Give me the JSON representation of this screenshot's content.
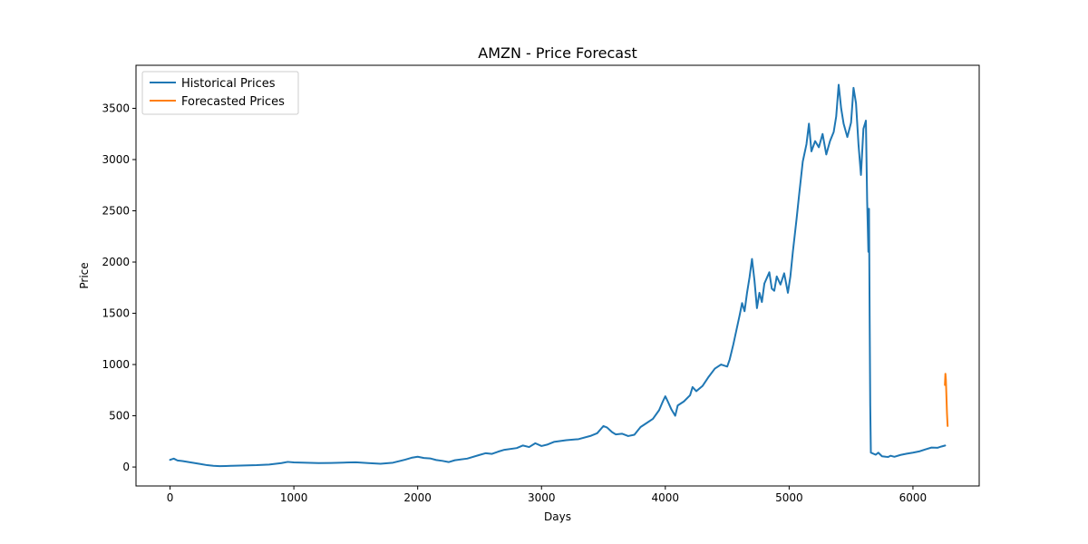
{
  "chart_data": {
    "type": "line",
    "title": "AMZN - Price Forecast",
    "xlabel": "Days",
    "ylabel": "Price",
    "xlim": [
      -275,
      6535
    ],
    "ylim": [
      -185,
      3920
    ],
    "x_ticks": [
      0,
      1000,
      2000,
      3000,
      4000,
      5000,
      6000
    ],
    "y_ticks": [
      0,
      500,
      1000,
      1500,
      2000,
      2500,
      3000,
      3500
    ],
    "grid": false,
    "legend_position": "upper left",
    "series": [
      {
        "name": "Historical Prices",
        "color": "#1f77b4",
        "points": [
          [
            0,
            70
          ],
          [
            30,
            82
          ],
          [
            60,
            64
          ],
          [
            100,
            58
          ],
          [
            150,
            48
          ],
          [
            200,
            38
          ],
          [
            250,
            28
          ],
          [
            300,
            18
          ],
          [
            350,
            12
          ],
          [
            400,
            8
          ],
          [
            450,
            10
          ],
          [
            500,
            12
          ],
          [
            600,
            15
          ],
          [
            700,
            18
          ],
          [
            800,
            24
          ],
          [
            900,
            38
          ],
          [
            950,
            50
          ],
          [
            1000,
            45
          ],
          [
            1100,
            42
          ],
          [
            1200,
            38
          ],
          [
            1300,
            40
          ],
          [
            1400,
            43
          ],
          [
            1500,
            46
          ],
          [
            1600,
            38
          ],
          [
            1700,
            32
          ],
          [
            1800,
            42
          ],
          [
            1900,
            72
          ],
          [
            1950,
            90
          ],
          [
            2000,
            100
          ],
          [
            2050,
            88
          ],
          [
            2100,
            84
          ],
          [
            2150,
            68
          ],
          [
            2200,
            60
          ],
          [
            2250,
            48
          ],
          [
            2300,
            66
          ],
          [
            2400,
            82
          ],
          [
            2500,
            118
          ],
          [
            2550,
            135
          ],
          [
            2600,
            128
          ],
          [
            2650,
            150
          ],
          [
            2700,
            168
          ],
          [
            2800,
            185
          ],
          [
            2850,
            210
          ],
          [
            2900,
            195
          ],
          [
            2950,
            232
          ],
          [
            3000,
            205
          ],
          [
            3050,
            220
          ],
          [
            3100,
            245
          ],
          [
            3200,
            262
          ],
          [
            3300,
            272
          ],
          [
            3400,
            305
          ],
          [
            3450,
            330
          ],
          [
            3500,
            400
          ],
          [
            3530,
            385
          ],
          [
            3570,
            340
          ],
          [
            3600,
            318
          ],
          [
            3650,
            325
          ],
          [
            3700,
            302
          ],
          [
            3750,
            315
          ],
          [
            3800,
            390
          ],
          [
            3850,
            430
          ],
          [
            3900,
            470
          ],
          [
            3950,
            555
          ],
          [
            3980,
            640
          ],
          [
            4000,
            690
          ],
          [
            4020,
            640
          ],
          [
            4050,
            560
          ],
          [
            4080,
            500
          ],
          [
            4100,
            600
          ],
          [
            4150,
            640
          ],
          [
            4200,
            700
          ],
          [
            4220,
            780
          ],
          [
            4250,
            740
          ],
          [
            4300,
            790
          ],
          [
            4350,
            880
          ],
          [
            4400,
            960
          ],
          [
            4450,
            1000
          ],
          [
            4500,
            980
          ],
          [
            4520,
            1050
          ],
          [
            4550,
            1200
          ],
          [
            4600,
            1480
          ],
          [
            4620,
            1600
          ],
          [
            4640,
            1520
          ],
          [
            4660,
            1700
          ],
          [
            4680,
            1850
          ],
          [
            4700,
            2030
          ],
          [
            4720,
            1820
          ],
          [
            4740,
            1550
          ],
          [
            4760,
            1700
          ],
          [
            4780,
            1610
          ],
          [
            4800,
            1790
          ],
          [
            4840,
            1900
          ],
          [
            4860,
            1740
          ],
          [
            4880,
            1720
          ],
          [
            4900,
            1860
          ],
          [
            4930,
            1780
          ],
          [
            4960,
            1890
          ],
          [
            4990,
            1700
          ],
          [
            5010,
            1860
          ],
          [
            5030,
            2100
          ],
          [
            5060,
            2420
          ],
          [
            5080,
            2650
          ],
          [
            5110,
            2980
          ],
          [
            5140,
            3150
          ],
          [
            5160,
            3350
          ],
          [
            5180,
            3080
          ],
          [
            5210,
            3180
          ],
          [
            5240,
            3120
          ],
          [
            5270,
            3250
          ],
          [
            5300,
            3050
          ],
          [
            5330,
            3180
          ],
          [
            5360,
            3270
          ],
          [
            5380,
            3420
          ],
          [
            5400,
            3730
          ],
          [
            5420,
            3500
          ],
          [
            5440,
            3350
          ],
          [
            5470,
            3220
          ],
          [
            5500,
            3360
          ],
          [
            5520,
            3700
          ],
          [
            5540,
            3550
          ],
          [
            5560,
            3150
          ],
          [
            5580,
            2850
          ],
          [
            5600,
            3300
          ],
          [
            5620,
            3380
          ],
          [
            5630,
            2600
          ],
          [
            5640,
            2100
          ],
          [
            5645,
            2520
          ],
          [
            5650,
            1500
          ],
          [
            5655,
            600
          ],
          [
            5660,
            140
          ],
          [
            5700,
            120
          ],
          [
            5720,
            140
          ],
          [
            5750,
            105
          ],
          [
            5780,
            100
          ],
          [
            5800,
            98
          ],
          [
            5820,
            110
          ],
          [
            5850,
            100
          ],
          [
            5900,
            118
          ],
          [
            5950,
            130
          ],
          [
            6000,
            140
          ],
          [
            6050,
            152
          ],
          [
            6100,
            172
          ],
          [
            6150,
            190
          ],
          [
            6200,
            188
          ],
          [
            6230,
            200
          ],
          [
            6260,
            210
          ]
        ]
      },
      {
        "name": "Forecasted Prices",
        "color": "#ff7f0e",
        "points": [
          [
            6258,
            800
          ],
          [
            6262,
            910
          ],
          [
            6266,
            850
          ],
          [
            6270,
            700
          ],
          [
            6275,
            520
          ],
          [
            6280,
            400
          ]
        ]
      }
    ]
  }
}
